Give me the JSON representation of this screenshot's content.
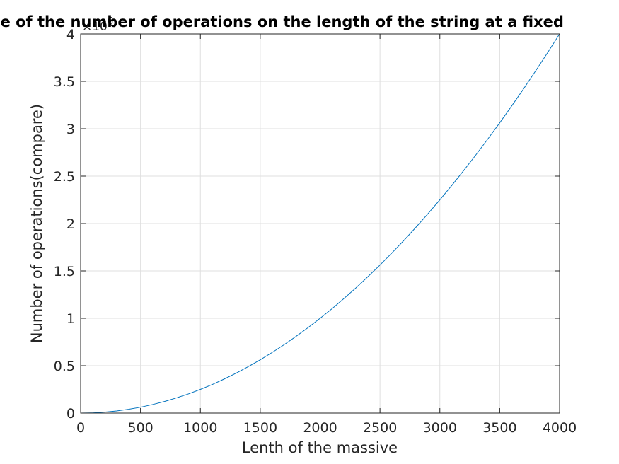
{
  "chart_data": {
    "type": "line",
    "title": "Dependence of the number of operations on the length of the string at a fixed",
    "xlabel": "Lenth of the massive",
    "ylabel": "Number of operations(compare)",
    "xlim": [
      0,
      4000
    ],
    "ylim": [
      0,
      4
    ],
    "y_multiplier": "×10",
    "y_multiplier_exponent": "6",
    "grid": true,
    "x_ticks": [
      "0",
      "500",
      "1000",
      "1500",
      "2000",
      "2500",
      "3000",
      "3500",
      "4000"
    ],
    "y_ticks": [
      "0",
      "0.5",
      "1",
      "1.5",
      "2",
      "2.5",
      "3",
      "3.5",
      "4"
    ],
    "series": [
      {
        "color": "#0072BD",
        "x": [
          0,
          100,
          200,
          300,
          400,
          500,
          600,
          700,
          800,
          900,
          1000,
          1100,
          1200,
          1300,
          1400,
          1500,
          1600,
          1700,
          1800,
          1900,
          2000,
          2100,
          2200,
          2300,
          2400,
          2500,
          2600,
          2700,
          2800,
          2900,
          3000,
          3100,
          3200,
          3300,
          3400,
          3500,
          3600,
          3700,
          3800,
          3900,
          4000
        ],
        "y": [
          0,
          0.002,
          0.01,
          0.022,
          0.04,
          0.062,
          0.09,
          0.122,
          0.16,
          0.202,
          0.25,
          0.302,
          0.36,
          0.422,
          0.49,
          0.562,
          0.64,
          0.722,
          0.81,
          0.902,
          1.0,
          1.102,
          1.21,
          1.322,
          1.44,
          1.562,
          1.69,
          1.822,
          1.96,
          2.102,
          2.25,
          2.402,
          2.56,
          2.722,
          2.89,
          3.062,
          3.24,
          3.422,
          3.61,
          3.802,
          4.0
        ]
      }
    ]
  }
}
